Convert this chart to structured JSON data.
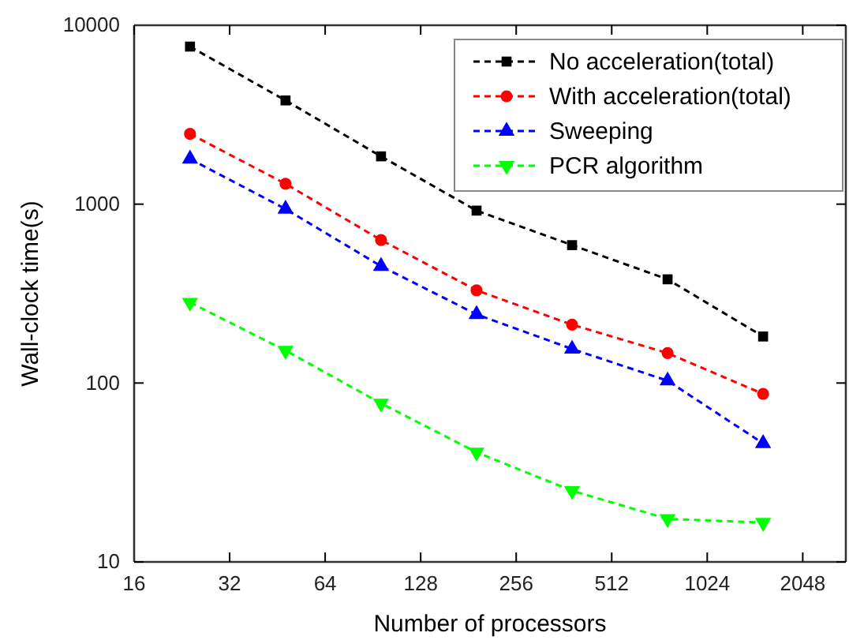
{
  "chart_data": {
    "type": "line",
    "xlabel": "Number of processors",
    "ylabel": "Wall-clock time(s)",
    "log": "xy",
    "x": [
      24,
      48,
      96,
      192,
      384,
      768,
      1536
    ],
    "xlim": [
      16,
      2800
    ],
    "xticks": [
      16,
      32,
      64,
      128,
      256,
      512,
      1024,
      2048
    ],
    "ylim": [
      10,
      10000
    ],
    "yticks": [
      10,
      100,
      1000,
      10000
    ],
    "line_style": "dashed",
    "legend": "top right",
    "grid": false,
    "series": [
      {
        "name": "No acceleration(total)",
        "color": "#000000",
        "marker": "square",
        "values": [
          7600,
          3800,
          1850,
          920,
          590,
          380,
          182
        ]
      },
      {
        "name": "With acceleration(total)",
        "color": "#ff0000",
        "marker": "circle",
        "values": [
          2470,
          1300,
          630,
          330,
          212,
          147,
          87
        ]
      },
      {
        "name": "Sweeping",
        "color": "#0000ff",
        "marker": "triangle",
        "values": [
          1790,
          940,
          450,
          242,
          155,
          103,
          46
        ]
      },
      {
        "name": "PCR algorithm",
        "color": "#00ff00",
        "marker": "triangle-down",
        "values": [
          282,
          152,
          77,
          41,
          25,
          17.4,
          16.6
        ]
      }
    ]
  }
}
